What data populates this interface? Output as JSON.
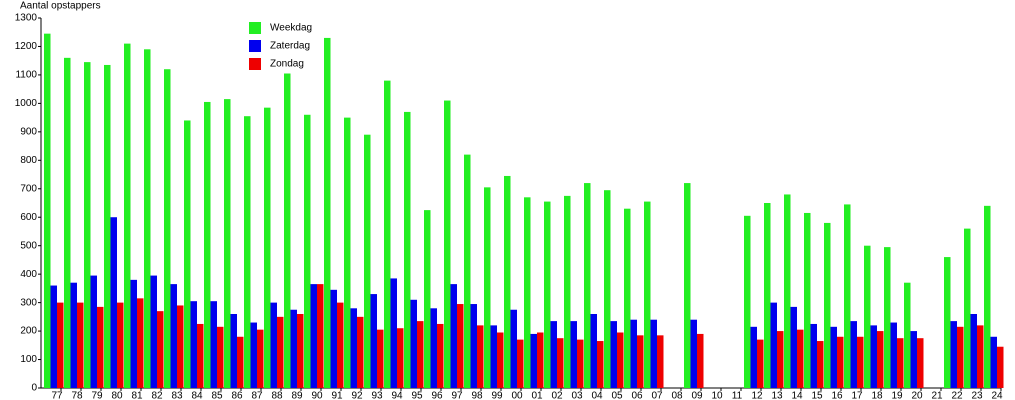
{
  "chart_data": {
    "type": "bar",
    "y_label": "Aantal opstappers",
    "categories": [
      "77",
      "78",
      "79",
      "80",
      "81",
      "82",
      "83",
      "84",
      "85",
      "86",
      "87",
      "88",
      "89",
      "90",
      "91",
      "92",
      "93",
      "94",
      "95",
      "96",
      "97",
      "98",
      "99",
      "00",
      "01",
      "02",
      "03",
      "04",
      "05",
      "06",
      "07",
      "08",
      "09",
      "10",
      "11",
      "12",
      "13",
      "14",
      "15",
      "16",
      "17",
      "18",
      "19",
      "20",
      "21",
      "22",
      "23",
      "24"
    ],
    "series": [
      {
        "name": "Weekdag",
        "color": "#22ee22",
        "values": [
          1245,
          1160,
          1145,
          1135,
          1210,
          1190,
          1120,
          940,
          1005,
          1015,
          955,
          985,
          1105,
          960,
          1230,
          950,
          890,
          1080,
          970,
          625,
          1010,
          820,
          705,
          745,
          670,
          655,
          675,
          720,
          695,
          630,
          655,
          null,
          720,
          null,
          null,
          605,
          650,
          680,
          615,
          580,
          645,
          500,
          495,
          370,
          null,
          460,
          560,
          640
        ]
      },
      {
        "name": "Zaterdag",
        "color": "#0000ee",
        "values": [
          360,
          370,
          395,
          600,
          380,
          395,
          365,
          305,
          305,
          260,
          230,
          300,
          275,
          365,
          345,
          280,
          330,
          385,
          310,
          280,
          365,
          295,
          220,
          275,
          190,
          235,
          235,
          260,
          235,
          240,
          240,
          null,
          240,
          null,
          null,
          215,
          300,
          285,
          225,
          215,
          235,
          220,
          230,
          200,
          null,
          235,
          260,
          180
        ]
      },
      {
        "name": "Zondag",
        "color": "#ee0000",
        "values": [
          300,
          300,
          285,
          300,
          315,
          270,
          290,
          225,
          215,
          180,
          205,
          250,
          260,
          365,
          300,
          250,
          205,
          210,
          235,
          225,
          295,
          220,
          195,
          170,
          195,
          175,
          170,
          165,
          195,
          185,
          185,
          null,
          190,
          null,
          null,
          170,
          200,
          205,
          165,
          180,
          180,
          200,
          175,
          175,
          null,
          215,
          220,
          145
        ]
      }
    ],
    "ylim": [
      0,
      1300
    ],
    "yticks": [
      0,
      100,
      200,
      300,
      400,
      500,
      600,
      700,
      800,
      900,
      1000,
      1100,
      1200,
      1300
    ],
    "grid": false
  }
}
